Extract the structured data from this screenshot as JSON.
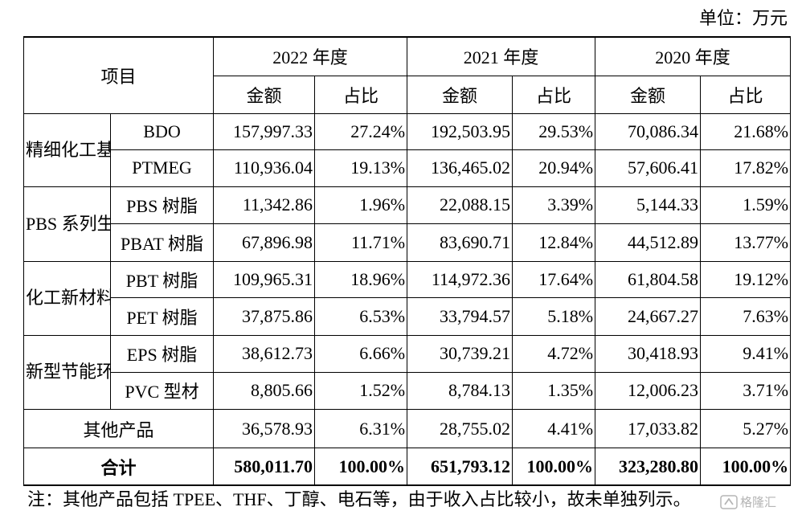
{
  "unit_label": "单位：万元",
  "header": {
    "item": "项目",
    "years": [
      "2022 年度",
      "2021 年度",
      "2020 年度"
    ],
    "amount": "金额",
    "ratio": "占比"
  },
  "rows": [
    {
      "category": "精细化工基础原料",
      "product": "BDO",
      "values": [
        "157,997.33",
        "27.24%",
        "192,503.95",
        "29.53%",
        "70,086.34",
        "21.68%"
      ]
    },
    {
      "product": "PTMEG",
      "values": [
        "110,936.04",
        "19.13%",
        "136,465.02",
        "20.94%",
        "57,606.41",
        "17.82%"
      ]
    },
    {
      "category": "PBS 系列生物降解材料",
      "product": "PBS 树脂",
      "values": [
        "11,342.86",
        "1.96%",
        "22,088.15",
        "3.39%",
        "5,144.33",
        "1.59%"
      ]
    },
    {
      "product": "PBAT 树脂",
      "values": [
        "67,896.98",
        "11.71%",
        "83,690.71",
        "12.84%",
        "44,512.89",
        "13.77%"
      ]
    },
    {
      "category": "化工新材料",
      "product": "PBT 树脂",
      "values": [
        "109,965.31",
        "18.96%",
        "114,972.36",
        "17.64%",
        "61,804.58",
        "19.12%"
      ]
    },
    {
      "product": "PET 树脂",
      "values": [
        "37,875.86",
        "6.53%",
        "33,794.57",
        "5.18%",
        "24,667.27",
        "7.63%"
      ]
    },
    {
      "category": "新型节能环保建材",
      "product": "EPS 树脂",
      "values": [
        "38,612.73",
        "6.66%",
        "30,739.21",
        "4.72%",
        "30,418.93",
        "9.41%"
      ]
    },
    {
      "product": "PVC 型材",
      "values": [
        "8,805.66",
        "1.52%",
        "8,784.13",
        "1.35%",
        "12,006.23",
        "3.71%"
      ]
    }
  ],
  "other": {
    "label": "其他产品",
    "values": [
      "36,578.93",
      "6.31%",
      "28,755.02",
      "4.41%",
      "17,033.82",
      "5.27%"
    ]
  },
  "total": {
    "label": "合计",
    "values": [
      "580,011.70",
      "100.00%",
      "651,793.12",
      "100.00%",
      "323,280.80",
      "100.00%"
    ]
  },
  "note": "注：其他产品包括 TPEE、THF、丁醇、电石等，由于收入占比较小，故未单独列示。",
  "watermark": {
    "icon": "gelonghui-logo-icon",
    "text": "格隆汇"
  }
}
